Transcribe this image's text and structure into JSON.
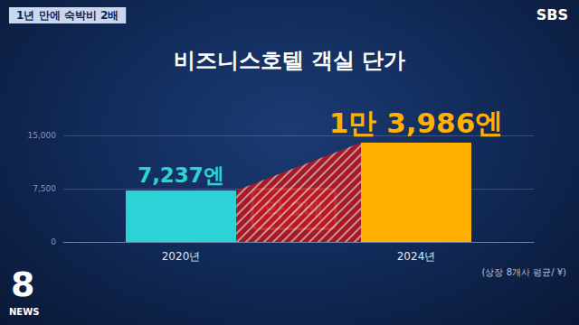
{
  "chart_data": {
    "type": "bar",
    "title": "비즈니스호텔 객실 단가",
    "header": "1년 만에 숙박비 2배",
    "logo": "SBS",
    "program": [
      "8",
      "NEWS"
    ],
    "source": "(상장 8개사 평균/ ¥)",
    "annotations": [
      "약 2배"
    ],
    "categories": [
      "2020년",
      "2024년"
    ],
    "values": [
      7237,
      13986
    ],
    "value_labels": [
      "7,237엔",
      "1만 3,986엔"
    ],
    "colors": [
      "#2bd3d6",
      "#ffb000"
    ],
    "ylim": [
      0,
      15000
    ],
    "yticks": [
      0,
      {
        "value": 7500,
        "label": "7,500"
      },
      {
        "value": 15000,
        "label": "15,000"
      }
    ],
    "grid": true,
    "data_labels": true
  }
}
